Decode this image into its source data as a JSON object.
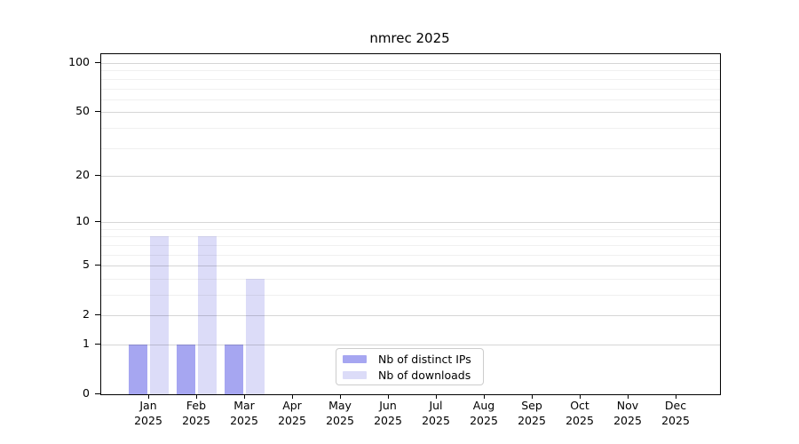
{
  "chart_data": {
    "type": "bar",
    "title": "nmrec 2025",
    "categories": [
      "Jan 2025",
      "Feb 2025",
      "Mar 2025",
      "Apr 2025",
      "May 2025",
      "Jun 2025",
      "Jul 2025",
      "Aug 2025",
      "Sep 2025",
      "Oct 2025",
      "Nov 2025",
      "Dec 2025"
    ],
    "series": [
      {
        "name": "Nb of distinct IPs",
        "color": "#a6a6f1",
        "values": [
          1,
          1,
          1,
          0,
          0,
          0,
          0,
          0,
          0,
          0,
          0,
          0
        ]
      },
      {
        "name": "Nb of downloads",
        "color": "#dcdcf8",
        "values": [
          8,
          8,
          4,
          0,
          0,
          0,
          0,
          0,
          0,
          0,
          0,
          0
        ]
      }
    ],
    "xlabel": "",
    "ylabel": "",
    "y_axis": {
      "scale": "log1p",
      "major_ticks": [
        0,
        1,
        2,
        5,
        10,
        20,
        50,
        100
      ],
      "minor_gridlines": [
        3,
        4,
        6,
        7,
        8,
        9,
        30,
        40,
        60,
        70,
        80,
        90
      ],
      "ylim": [
        0,
        113
      ],
      "grid": "on"
    },
    "legend": {
      "position": "lower center"
    }
  },
  "colors": {
    "major_grid": "rgba(0,0,0,0.16)",
    "minor_grid": "rgba(0,0,0,0.06)",
    "spine": "#000000",
    "legend_border": "#cccccc"
  }
}
